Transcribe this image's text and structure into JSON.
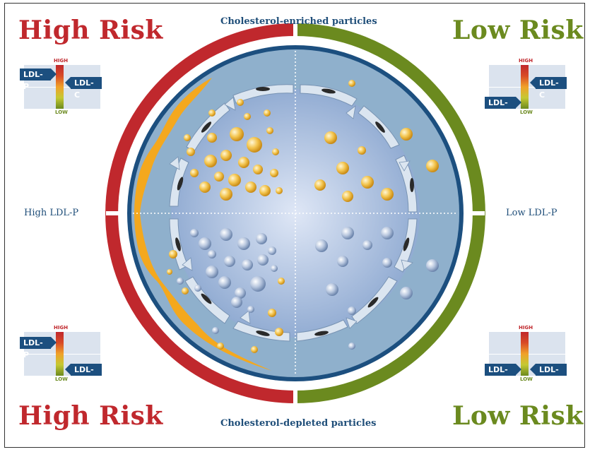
{
  "quadrants": {
    "top_left": {
      "risk": "High Risk",
      "meter": {
        "high": "HIGH",
        "low": "LOW",
        "left_tag": "LDL-P",
        "right_tag": "LDL-C"
      }
    },
    "top_right": {
      "risk": "Low Risk",
      "meter": {
        "high": "HIGH",
        "low": "LOW",
        "left_tag": "LDL-P",
        "right_tag": "LDL-C"
      }
    },
    "bottom_left": {
      "risk": "High Risk",
      "meter": {
        "high": "HIGH",
        "low": "LOW",
        "left_tag": "LDL-P",
        "right_tag": "LDL-C"
      }
    },
    "bottom_right": {
      "risk": "Low Risk",
      "meter": {
        "high": "HIGH",
        "low": "LOW",
        "left_tag": "LDL-P",
        "right_tag": "LDL-C"
      }
    }
  },
  "captions": {
    "top": "Cholesterol-enriched particles",
    "bottom": "Cholesterol-depleted particles",
    "left": "High LDL-P",
    "right": "Low LDL-P"
  },
  "colors": {
    "high_risk": "#c0282d",
    "low_risk": "#6b8a1f",
    "navy": "#1c4f7f",
    "vessel": "#8fb0cc",
    "particle": "#f2c34a",
    "plaque": "#f4a81e"
  }
}
